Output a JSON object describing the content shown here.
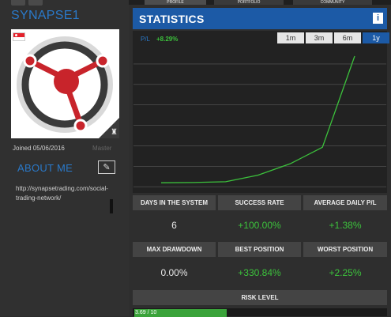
{
  "profile": {
    "username": "SYNAPSE1",
    "joined": "Joined 05/06/2016",
    "rank": "Master",
    "about_title": "ABOUT ME",
    "bio": "http://synapsetrading.com/social-trading-network/"
  },
  "tabs": [
    {
      "label": "PROFILE"
    },
    {
      "label": "PORTFOLIO"
    },
    {
      "label": "COMMUNITY"
    }
  ],
  "statistics": {
    "title": "STATISTICS",
    "pnl_label": "P/L",
    "pnl_value": "+8.29%",
    "ranges": [
      "1m",
      "3m",
      "6m",
      "1y"
    ],
    "active_range": "1y"
  },
  "chart_data": {
    "type": "line",
    "x": [
      0,
      1,
      2,
      3,
      4,
      5,
      6
    ],
    "series": [
      {
        "values": [
          0.0,
          0.1,
          0.4,
          3.0,
          7.5,
          14.0,
          50.0
        ]
      }
    ],
    "ylim": [
      -4,
      55
    ],
    "grid": true,
    "color": "#3cc23c"
  },
  "stats": [
    {
      "label": "DAYS IN THE SYSTEM",
      "value": "6",
      "color": "white"
    },
    {
      "label": "SUCCESS RATE",
      "value": "+100.00%",
      "color": "green"
    },
    {
      "label": "AVERAGE DAILY P/L",
      "value": "+1.38%",
      "color": "green"
    },
    {
      "label": "MAX DRAWDOWN",
      "value": "0.00%",
      "color": "white"
    },
    {
      "label": "BEST POSITION",
      "value": "+330.84%",
      "color": "green"
    },
    {
      "label": "WORST POSITION",
      "value": "+2.25%",
      "color": "green"
    }
  ],
  "risk": {
    "label": "RISK LEVEL",
    "value": 3.69,
    "max": 10,
    "text": "3.69 / 10"
  }
}
